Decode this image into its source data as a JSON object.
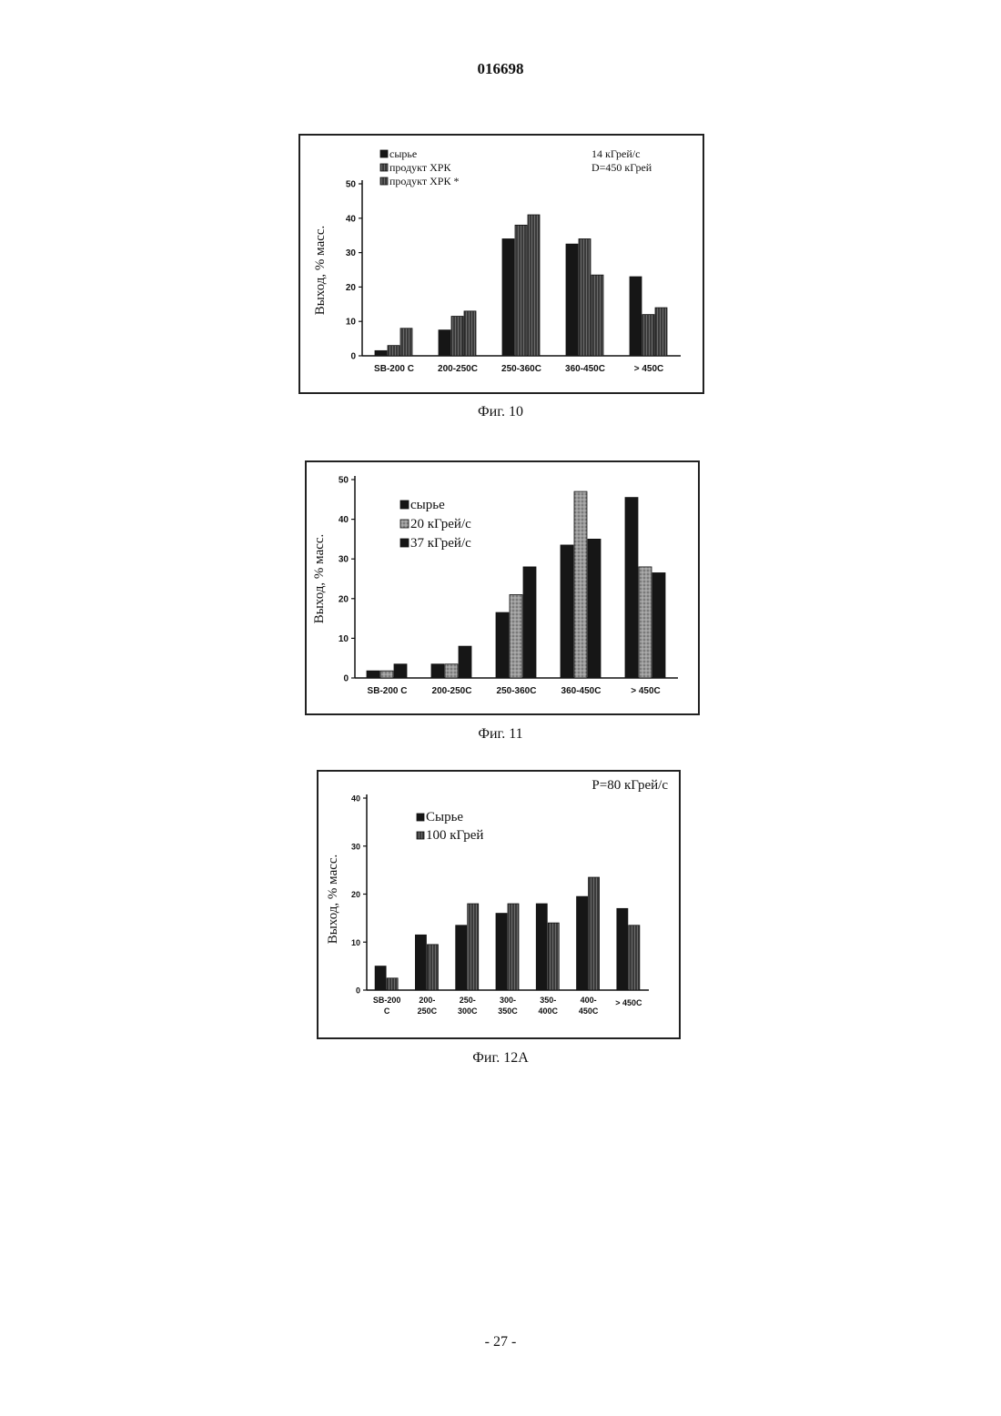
{
  "header": {
    "doc_number": "016698"
  },
  "footer": {
    "page_number": "- 27 -"
  },
  "colors": {
    "dark": "#161616",
    "hatched": "#3a3a3a",
    "dotted": "#9a9a9a"
  },
  "chart_data": [
    {
      "id": "fig10",
      "type": "bar",
      "caption": "Фиг. 10",
      "ylabel": "Выход, % масс.",
      "ylim": [
        0,
        50
      ],
      "yticks": [
        "0",
        "10",
        "20",
        "30",
        "40",
        "50"
      ],
      "categories": [
        "SB-200 C",
        "200-250C",
        "250-360C",
        "360-450C",
        "> 450C"
      ],
      "legend": {
        "position": "top-left"
      },
      "annotations": [
        "14 кГрей/с",
        "D=450 кГрей"
      ],
      "series": [
        {
          "name": "сырье",
          "values": [
            1.5,
            7.5,
            34,
            32.5,
            23
          ],
          "pattern": "dark"
        },
        {
          "name": "продукт ХРК",
          "values": [
            3,
            11.5,
            38,
            34,
            12
          ],
          "pattern": "hatched"
        },
        {
          "name": "продукт ХРК *",
          "values": [
            8,
            13,
            41,
            23.5,
            14
          ],
          "pattern": "hatched"
        }
      ]
    },
    {
      "id": "fig11",
      "type": "bar",
      "caption": "Фиг. 11",
      "ylabel": "Выход, % масс.",
      "ylim": [
        0,
        50
      ],
      "yticks": [
        "0",
        "10",
        "20",
        "30",
        "40",
        "50"
      ],
      "categories": [
        "SB-200 C",
        "200-250C",
        "250-360C",
        "360-450C",
        "> 450C"
      ],
      "legend": {
        "position": "top-left"
      },
      "annotations": [],
      "series": [
        {
          "name": "сырье",
          "values": [
            1.8,
            3.5,
            16.5,
            33.5,
            45.5
          ],
          "pattern": "dark"
        },
        {
          "name": "20 кГрей/с",
          "values": [
            1.8,
            3.5,
            21,
            47,
            28
          ],
          "pattern": "dotted"
        },
        {
          "name": "37 кГрей/с",
          "values": [
            3.5,
            8,
            28,
            35,
            26.5
          ],
          "pattern": "dark"
        }
      ]
    },
    {
      "id": "fig12a",
      "type": "bar",
      "caption": "Фиг. 12A",
      "ylabel": "Выход, % масс.",
      "ylim": [
        0,
        40
      ],
      "yticks": [
        "0",
        "10",
        "20",
        "30",
        "40"
      ],
      "categories": [
        "SB-200 C",
        "200-250C",
        "250-300C",
        "300-350C",
        "350-400C",
        "400-450C",
        "> 450C"
      ],
      "legend": {
        "position": "top-left"
      },
      "annotations": [
        "P=80 кГрей/с"
      ],
      "series": [
        {
          "name": "Сырье",
          "values": [
            5,
            11.5,
            13.5,
            16,
            18,
            19.5,
            17
          ],
          "pattern": "dark"
        },
        {
          "name": "100 кГрей",
          "values": [
            2.5,
            9.5,
            18,
            18,
            14,
            23.5,
            13.5
          ],
          "pattern": "hatched"
        }
      ]
    }
  ]
}
